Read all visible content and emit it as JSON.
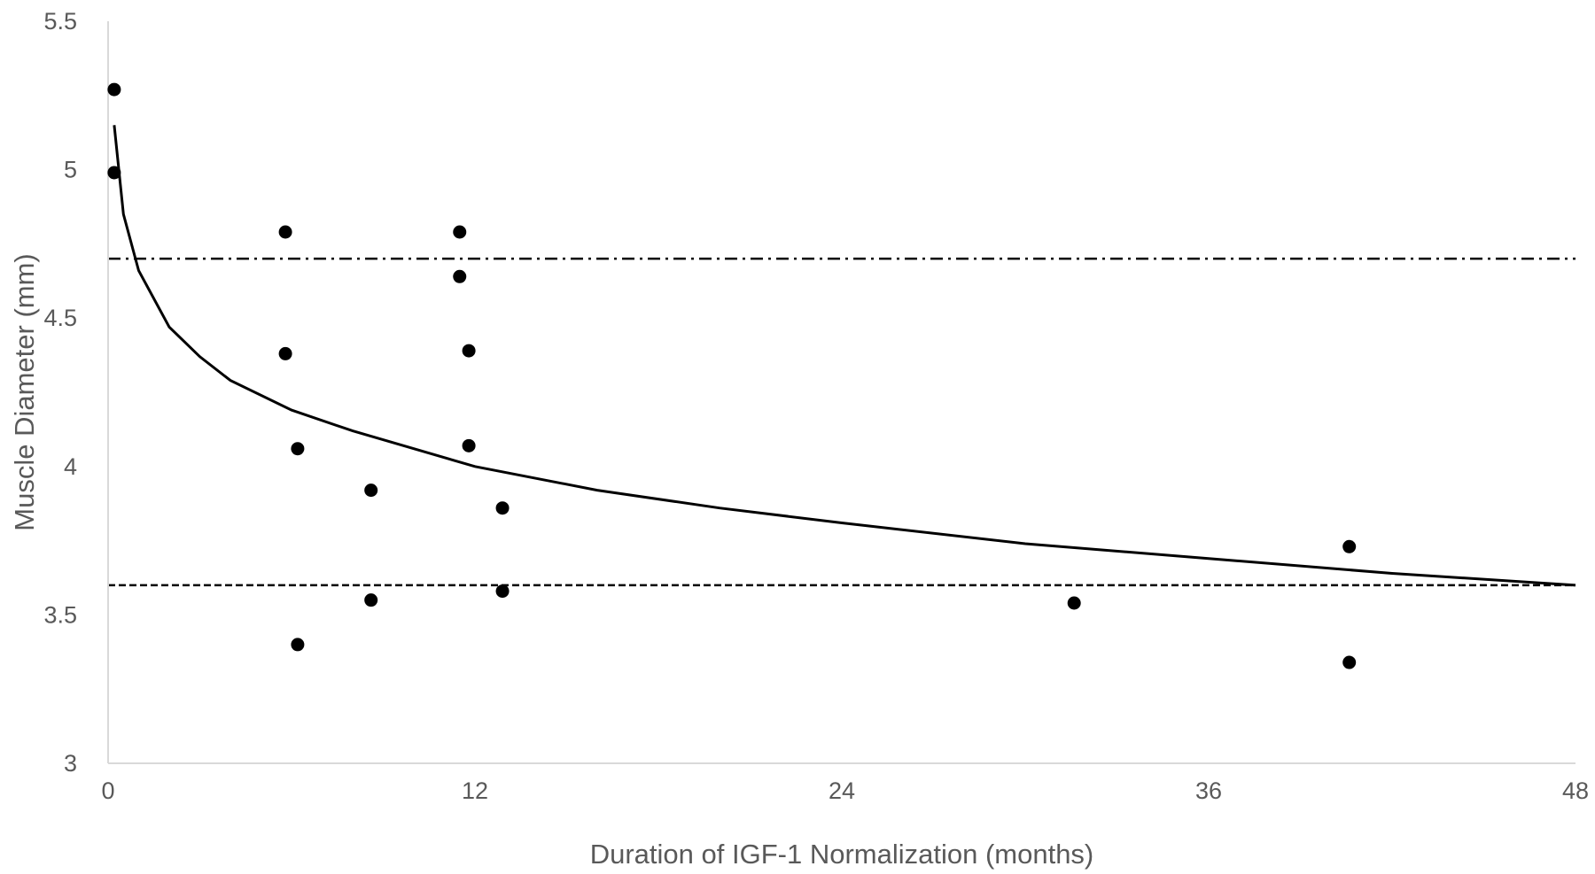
{
  "chart_data": {
    "type": "scatter",
    "title": "",
    "xlabel": "Duration of IGF-1 Normalization (months)",
    "ylabel": "Muscle Diameter (mm)",
    "xlim": [
      0,
      48
    ],
    "ylim": [
      3,
      5.5
    ],
    "x_ticks": [
      "0",
      "12",
      "24",
      "36",
      "48"
    ],
    "y_ticks": [
      "3",
      "3.5",
      "4",
      "4.5",
      "5",
      "5.5"
    ],
    "grid": false,
    "legend": "none",
    "colors": {
      "points": "#000000",
      "axis": "#d9d9d9",
      "text": "#595959"
    },
    "points": [
      {
        "x": 0.2,
        "y": 5.27
      },
      {
        "x": 0.2,
        "y": 4.99
      },
      {
        "x": 5.8,
        "y": 4.79
      },
      {
        "x": 5.8,
        "y": 4.38
      },
      {
        "x": 6.2,
        "y": 4.06
      },
      {
        "x": 6.2,
        "y": 3.4
      },
      {
        "x": 8.6,
        "y": 3.92
      },
      {
        "x": 8.6,
        "y": 3.55
      },
      {
        "x": 11.5,
        "y": 4.79
      },
      {
        "x": 11.5,
        "y": 4.64
      },
      {
        "x": 11.8,
        "y": 4.39
      },
      {
        "x": 11.8,
        "y": 4.07
      },
      {
        "x": 12.9,
        "y": 3.86
      },
      {
        "x": 12.9,
        "y": 3.58
      },
      {
        "x": 31.6,
        "y": 3.54
      },
      {
        "x": 40.6,
        "y": 3.73
      },
      {
        "x": 40.6,
        "y": 3.34
      }
    ],
    "trendline": {
      "type": "logarithmic",
      "x": [
        0.2,
        0.5,
        1,
        2,
        3,
        4,
        6,
        8,
        10,
        12,
        16,
        20,
        24,
        30,
        36,
        42,
        48
      ],
      "y": [
        5.15,
        4.85,
        4.66,
        4.47,
        4.37,
        4.29,
        4.19,
        4.12,
        4.06,
        4.0,
        3.92,
        3.86,
        3.81,
        3.74,
        3.69,
        3.64,
        3.6
      ]
    },
    "reference_lines": [
      {
        "y": 4.7,
        "style": "dash-dot"
      },
      {
        "y": 3.6,
        "style": "dashed"
      }
    ]
  }
}
